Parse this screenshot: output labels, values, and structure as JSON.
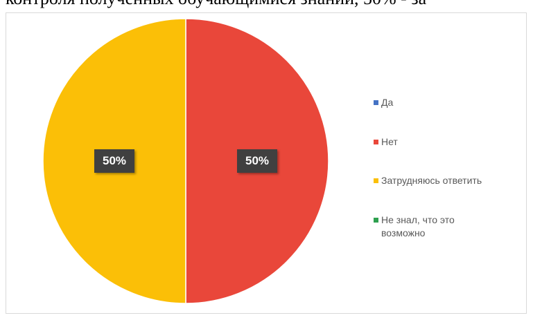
{
  "header": {
    "text": "контроля полученных обучающимися знаний, 50% - за"
  },
  "chart_data": {
    "type": "pie",
    "categories": [
      "Да",
      "Нет",
      "Затрудняюсь ответить",
      "Не знал, что это\nвозможно"
    ],
    "values": [
      0,
      50,
      50,
      0
    ],
    "data_labels": [
      "",
      "50%",
      "50%",
      ""
    ],
    "colors": [
      "#4472C4",
      "#E9473A",
      "#FBBF07",
      "#2EA04F"
    ],
    "legend_position": "right",
    "start_angle": "top",
    "direction": "clockwise"
  }
}
